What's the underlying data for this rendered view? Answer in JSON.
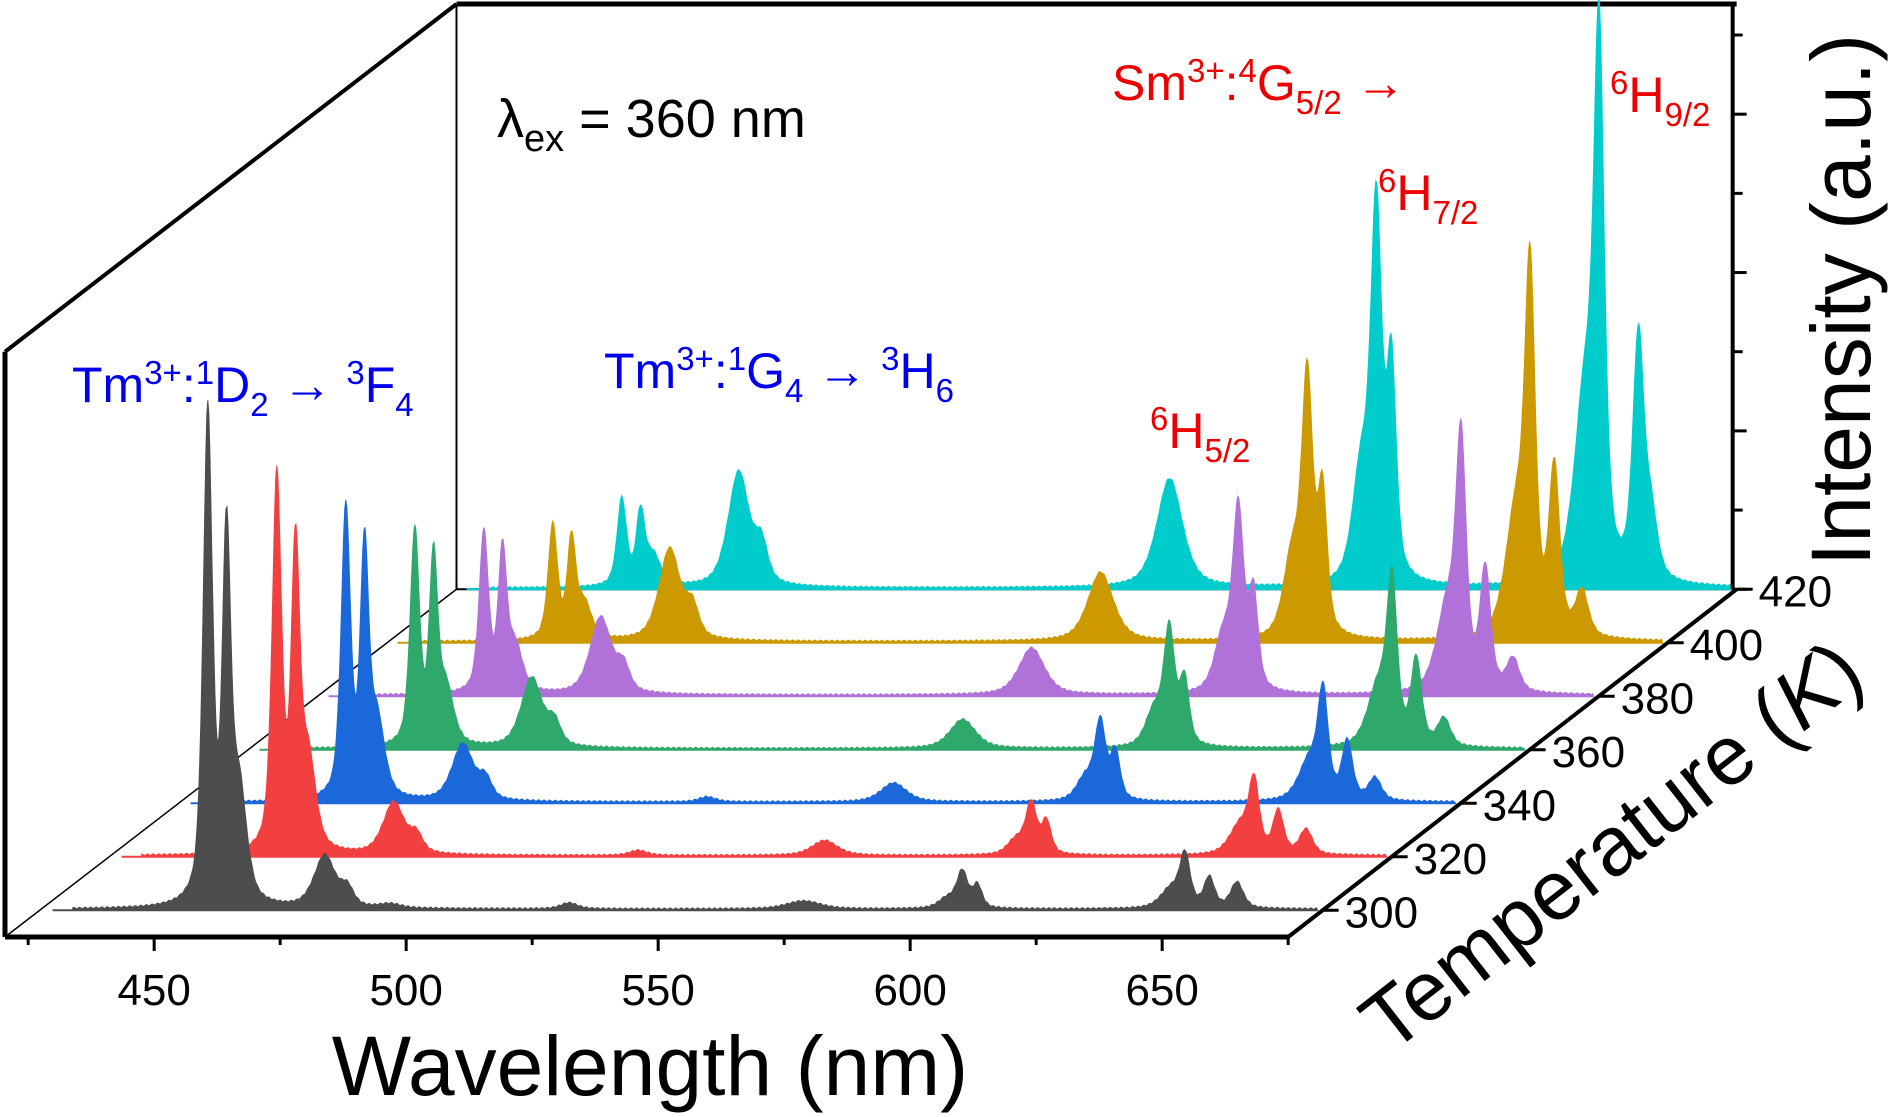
{
  "chart_data": {
    "type": "area",
    "subtype": "3d-waterfall",
    "title": "",
    "xlabel": "Wavelength (nm)",
    "ylabel": "Intensity (a.u.)",
    "zlabel": "Temperature (K)",
    "xlim": [
      421,
      675
    ],
    "zlim": [
      290,
      420
    ],
    "ylim": [
      0,
      100
    ],
    "x_ticks": [
      450,
      500,
      550,
      600,
      650
    ],
    "x_minor_ticks": [
      425,
      475,
      525,
      575,
      625,
      675
    ],
    "z_ticks": [
      300,
      320,
      340,
      360,
      380,
      400,
      420
    ],
    "y_ticks_labeled": false,
    "y_tick_count": 8,
    "grid": false,
    "legend": "none",
    "excitation_note": {
      "symbol": "λ",
      "sub": "ex",
      "text": " = 360 nm"
    },
    "annotations": [
      {
        "id": "tm-1d2",
        "color": "#0000ee",
        "parts": [
          [
            "n",
            "Tm"
          ],
          [
            "sup",
            "3+"
          ],
          [
            "n",
            ":"
          ],
          [
            "sup",
            "1"
          ],
          [
            "n",
            "D"
          ],
          [
            "sub",
            "2"
          ],
          [
            "n",
            " → "
          ],
          [
            "sup",
            "3"
          ],
          [
            "n",
            "F"
          ],
          [
            "sub",
            "4"
          ]
        ]
      },
      {
        "id": "tm-1g4",
        "color": "#0000ee",
        "parts": [
          [
            "n",
            "Tm"
          ],
          [
            "sup",
            "3+"
          ],
          [
            "n",
            ":"
          ],
          [
            "sup",
            "1"
          ],
          [
            "n",
            "G"
          ],
          [
            "sub",
            "4"
          ],
          [
            "n",
            " → "
          ],
          [
            "sup",
            "3"
          ],
          [
            "n",
            "H"
          ],
          [
            "sub",
            "6"
          ]
        ]
      },
      {
        "id": "sm-4g52",
        "color": "#ee0000",
        "parts": [
          [
            "n",
            "Sm"
          ],
          [
            "sup",
            "3+"
          ],
          [
            "n",
            ":"
          ],
          [
            "sup",
            "4"
          ],
          [
            "n",
            "G"
          ],
          [
            "sub",
            "5/2"
          ],
          [
            "n",
            " →"
          ]
        ]
      },
      {
        "id": "sm-6h52",
        "color": "#ee0000",
        "parts": [
          [
            "sup",
            "6"
          ],
          [
            "n",
            "H"
          ],
          [
            "sub",
            "5/2"
          ]
        ]
      },
      {
        "id": "sm-6h72",
        "color": "#ee0000",
        "parts": [
          [
            "sup",
            "6"
          ],
          [
            "n",
            "H"
          ],
          [
            "sub",
            "7/2"
          ]
        ]
      },
      {
        "id": "sm-6h92",
        "color": "#ee0000",
        "parts": [
          [
            "sup",
            "6"
          ],
          [
            "n",
            "H"
          ],
          [
            "sub",
            "9/2"
          ]
        ]
      }
    ],
    "peak_shape": "lorentzian-gaussian mix, [center_nm, height_au, fwhm_nm]",
    "series": [
      {
        "name": "300 K",
        "temperature": 300,
        "color": "#4d4d4d",
        "peaks": [
          [
            453.8,
            98,
            2.2
          ],
          [
            457.5,
            70,
            2.0
          ],
          [
            460.0,
            22,
            3.5
          ],
          [
            477.0,
            10.4,
            5.0
          ],
          [
            481.5,
            3.5,
            3.0
          ],
          [
            490,
            0.8,
            5
          ],
          [
            525.5,
            1.2,
            4
          ],
          [
            572,
            1.6,
            8
          ],
          [
            600.5,
            2.0,
            4
          ],
          [
            603.5,
            7.2,
            2.6
          ],
          [
            606.5,
            4.5,
            2.2
          ],
          [
            645,
            4,
            5
          ],
          [
            647.7,
            9.8,
            2.4
          ],
          [
            652.5,
            6.0,
            2.5
          ],
          [
            658,
            5.2,
            3
          ]
        ]
      },
      {
        "name": "320 K",
        "temperature": 320,
        "color": "#f24040",
        "peaks": [
          [
            453.8,
            75,
            2.2
          ],
          [
            457.5,
            58,
            2.0
          ],
          [
            460.0,
            18,
            3.5
          ],
          [
            477.0,
            10.4,
            5.0
          ],
          [
            481.5,
            3.5,
            3.0
          ],
          [
            525.5,
            1.0,
            4
          ],
          [
            562.5,
            3.0,
            6
          ],
          [
            600.5,
            3.0,
            4
          ],
          [
            603.5,
            10.0,
            2.6
          ],
          [
            606.5,
            6.5,
            2.2
          ],
          [
            645,
            6,
            5
          ],
          [
            647.7,
            13.4,
            2.4
          ],
          [
            652.5,
            8.5,
            2.5
          ],
          [
            658,
            5.0,
            3
          ]
        ]
      },
      {
        "name": "340 K",
        "temperature": 340,
        "color": "#1a68d9",
        "peaks": [
          [
            453.8,
            58,
            2.2
          ],
          [
            457.5,
            48,
            2.0
          ],
          [
            460.0,
            15,
            3.5
          ],
          [
            477.0,
            11.4,
            5.0
          ],
          [
            481.5,
            4.0,
            3.0
          ],
          [
            525.5,
            1.0,
            4
          ],
          [
            562.5,
            3.8,
            6
          ],
          [
            600.5,
            4.5,
            4
          ],
          [
            603.5,
            15.4,
            2.6
          ],
          [
            606.5,
            9.5,
            2.2
          ],
          [
            645,
            8,
            5
          ],
          [
            647.7,
            20.0,
            2.4
          ],
          [
            652.5,
            11.5,
            2.5
          ],
          [
            658,
            4.5,
            3
          ]
        ]
      },
      {
        "name": "360 K",
        "temperature": 360,
        "color": "#2fa86b",
        "peaks": [
          [
            453.8,
            43,
            2.2
          ],
          [
            457.5,
            36,
            2.0
          ],
          [
            460.0,
            11,
            3.5
          ],
          [
            477.0,
            14.0,
            5.0
          ],
          [
            481.5,
            4.5,
            3.0
          ],
          [
            562.5,
            5.8,
            6
          ],
          [
            600.5,
            7.0,
            4
          ],
          [
            603.5,
            22.8,
            2.6
          ],
          [
            606.5,
            13.0,
            2.2
          ],
          [
            645,
            12,
            5
          ],
          [
            647.7,
            30.2,
            2.4
          ],
          [
            652.5,
            17.0,
            2.5
          ],
          [
            658,
            5.5,
            3
          ]
        ]
      },
      {
        "name": "380 K",
        "temperature": 380,
        "color": "#b072d9",
        "peaks": [
          [
            453.8,
            32,
            2.2
          ],
          [
            457.5,
            27,
            2.0
          ],
          [
            460.0,
            9,
            3.5
          ],
          [
            477.0,
            15.4,
            5.0
          ],
          [
            481.5,
            5.0,
            3.0
          ],
          [
            562.5,
            9.4,
            6
          ],
          [
            600.5,
            11.0,
            4
          ],
          [
            603.5,
            35.4,
            2.6
          ],
          [
            606.5,
            19.0,
            2.2
          ],
          [
            645,
            17,
            5
          ],
          [
            647.7,
            46.4,
            2.4
          ],
          [
            652.5,
            24.0,
            2.5
          ],
          [
            658,
            6.5,
            3
          ]
        ]
      },
      {
        "name": "400 K",
        "temperature": 400,
        "color": "#cc9900",
        "peaks": [
          [
            453.8,
            22.8,
            2.2
          ],
          [
            457.5,
            19,
            2.0
          ],
          [
            460.0,
            7,
            3.5
          ],
          [
            477.0,
            18.4,
            5.0
          ],
          [
            481.5,
            6.0,
            3.0
          ],
          [
            562.5,
            13.8,
            6
          ],
          [
            600.5,
            16.0,
            4
          ],
          [
            603.5,
            50.4,
            2.6
          ],
          [
            606.5,
            28.0,
            2.2
          ],
          [
            645,
            25,
            5
          ],
          [
            647.7,
            67.2,
            2.4
          ],
          [
            652.5,
            33.0,
            2.5
          ],
          [
            658,
            9,
            3
          ]
        ]
      },
      {
        "name": "420 K",
        "temperature": 420,
        "color": "#00cccc",
        "peaks": [
          [
            453.8,
            17.4,
            2.2
          ],
          [
            457.5,
            14,
            2.0
          ],
          [
            460.0,
            6,
            3.5
          ],
          [
            477.0,
            23.0,
            5.0
          ],
          [
            481.5,
            7.5,
            3.0
          ],
          [
            562.5,
            21.8,
            6
          ],
          [
            600.5,
            22.0,
            4
          ],
          [
            603.5,
            72.8,
            2.6
          ],
          [
            606.5,
            42.0,
            2.2
          ],
          [
            645,
            38,
            5
          ],
          [
            647.7,
            100,
            2.4
          ],
          [
            655.5,
            48,
            2.6
          ],
          [
            658,
            12,
            3
          ]
        ]
      }
    ]
  }
}
